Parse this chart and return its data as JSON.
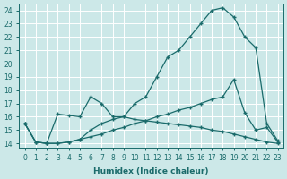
{
  "xlabel": "Humidex (Indice chaleur)",
  "bg_color": "#cce8e8",
  "grid_color": "#b8d8d8",
  "line_color": "#1a6b6b",
  "xlim": [
    -0.5,
    23.5
  ],
  "ylim": [
    13.7,
    24.5
  ],
  "xticks": [
    0,
    1,
    2,
    3,
    4,
    5,
    6,
    7,
    8,
    9,
    10,
    11,
    12,
    13,
    14,
    15,
    16,
    17,
    18,
    19,
    20,
    21,
    22,
    23
  ],
  "yticks": [
    14,
    15,
    16,
    17,
    18,
    19,
    20,
    21,
    22,
    23,
    24
  ],
  "line1_x": [
    0,
    1,
    2,
    3,
    4,
    5,
    6,
    7,
    8,
    9,
    10,
    11,
    12,
    13,
    14,
    15,
    16,
    17,
    18,
    19,
    20,
    21,
    22,
    23
  ],
  "line1_y": [
    15.5,
    14.1,
    14.0,
    16.2,
    16.1,
    16.0,
    17.5,
    17.0,
    16.0,
    16.0,
    17.0,
    17.5,
    19.0,
    20.5,
    21.0,
    22.0,
    23.0,
    24.0,
    24.2,
    23.5,
    22.0,
    21.2,
    15.5,
    14.2
  ],
  "line2_x": [
    0,
    1,
    2,
    3,
    4,
    5,
    6,
    7,
    8,
    9,
    10,
    11,
    12,
    13,
    14,
    15,
    16,
    17,
    18,
    19,
    20,
    21,
    22,
    23
  ],
  "line2_y": [
    15.5,
    14.1,
    14.0,
    14.0,
    14.1,
    14.3,
    14.5,
    14.7,
    15.0,
    15.2,
    15.5,
    15.7,
    16.0,
    16.2,
    16.5,
    16.7,
    17.0,
    17.3,
    17.5,
    18.8,
    16.3,
    15.0,
    15.2,
    14.1
  ],
  "line3_x": [
    0,
    1,
    2,
    3,
    4,
    5,
    6,
    7,
    8,
    9,
    10,
    11,
    12,
    13,
    14,
    15,
    16,
    17,
    18,
    19,
    20,
    21,
    22,
    23
  ],
  "line3_y": [
    15.5,
    14.1,
    14.0,
    14.0,
    14.1,
    14.3,
    15.0,
    15.5,
    15.8,
    16.0,
    15.8,
    15.7,
    15.6,
    15.5,
    15.4,
    15.3,
    15.2,
    15.0,
    14.9,
    14.7,
    14.5,
    14.3,
    14.1,
    14.0
  ]
}
